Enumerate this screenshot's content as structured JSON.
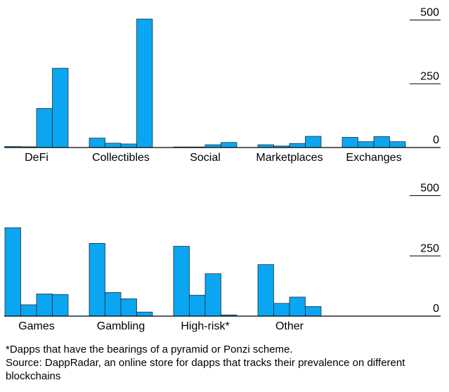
{
  "colors": {
    "bar": "#0aa6f2",
    "bar_stroke": "#1a1a1a",
    "axis": "#000000",
    "text": "#000000"
  },
  "chart_data": [
    {
      "type": "bar",
      "grouped": true,
      "categories": [
        "DeFi",
        "Collectibles",
        "Social",
        "Marketplaces",
        "Exchanges"
      ],
      "groups": [
        [
          4,
          3,
          153,
          311
        ],
        [
          37,
          17,
          14,
          504
        ],
        [
          2,
          0,
          11,
          20
        ],
        [
          11,
          6,
          16,
          44
        ],
        [
          40,
          23,
          43,
          23
        ]
      ],
      "yticks": [
        0,
        250,
        500
      ],
      "ylim": [
        0,
        540
      ],
      "grid": false
    },
    {
      "type": "bar",
      "grouped": true,
      "categories": [
        "Games",
        "Gambling",
        "High-risk*",
        "Other"
      ],
      "groups": [
        [
          367,
          47,
          92,
          90
        ],
        [
          302,
          98,
          72,
          17
        ],
        [
          290,
          87,
          176,
          5
        ],
        [
          214,
          53,
          79,
          40
        ]
      ],
      "yticks": [
        0,
        250,
        500
      ],
      "ylim": [
        0,
        540
      ],
      "grid": false
    }
  ],
  "footnote": {
    "line1": "*Dapps that have the bearings of a pyramid or Ponzi scheme.",
    "line2": "Source: DappRadar, an online store for dapps that tracks their prevalence on different blockchains"
  }
}
